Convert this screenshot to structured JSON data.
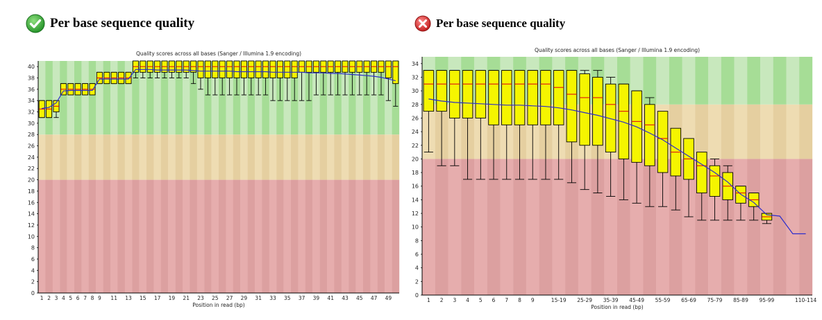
{
  "panels": [
    {
      "id": "left",
      "status": "pass",
      "status_icon": "check-circle-icon",
      "status_color": "#2fa82f",
      "heading": "Per base sequence quality",
      "chart_data": {
        "type": "box",
        "title": "Quality scores across all bases (Sanger / Illumina 1.9 encoding)",
        "xlabel": "Position in read (bp)",
        "ylabel": "",
        "ylim": [
          0,
          41
        ],
        "yticks": [
          0,
          2,
          4,
          6,
          8,
          10,
          12,
          14,
          16,
          18,
          20,
          22,
          24,
          26,
          28,
          30,
          32,
          34,
          36,
          38,
          40
        ],
        "zones": [
          {
            "from": 0,
            "to": 20,
            "colors": [
              "#e6adad",
              "#dca0a0"
            ]
          },
          {
            "from": 20,
            "to": 28,
            "colors": [
              "#eedcb2",
              "#e5cfa0"
            ]
          },
          {
            "from": 28,
            "to": 41,
            "colors": [
              "#c8e8bd",
              "#a6dd96"
            ]
          }
        ],
        "grid": false,
        "categories": [
          "1",
          "2",
          "3",
          "4",
          "5",
          "6",
          "7",
          "8",
          "9",
          "10",
          "11",
          "12",
          "13",
          "14",
          "15",
          "16",
          "17",
          "18",
          "19",
          "20",
          "21",
          "22",
          "23",
          "24",
          "25",
          "26",
          "27",
          "28",
          "29",
          "30",
          "31",
          "32",
          "33",
          "34",
          "35",
          "36",
          "37",
          "38",
          "39",
          "40",
          "41",
          "42",
          "43",
          "44",
          "45",
          "46",
          "47",
          "48",
          "49",
          "50"
        ],
        "xtick_labels": [
          "1",
          "2",
          "3",
          "4",
          "5",
          "6",
          "7",
          "8",
          "9",
          "",
          "11",
          "",
          "13",
          "",
          "15",
          "",
          "17",
          "",
          "19",
          "",
          "21",
          "",
          "23",
          "",
          "25",
          "",
          "27",
          "",
          "29",
          "",
          "31",
          "",
          "33",
          "",
          "35",
          "",
          "37",
          "",
          "39",
          "",
          "41",
          "",
          "43",
          "",
          "45",
          "",
          "47",
          "",
          "49",
          ""
        ],
        "series": [
          {
            "kind": "box",
            "q1": [
              31,
              31,
              32,
              35,
              35,
              35,
              35,
              35,
              37,
              37,
              37,
              37,
              37,
              39,
              39,
              39,
              39,
              39,
              39,
              39,
              39,
              39,
              38,
              38,
              38,
              38,
              38,
              38,
              38,
              38,
              38,
              38,
              38,
              38,
              38,
              38,
              39,
              39,
              39,
              39,
              39,
              39,
              39,
              39,
              39,
              39,
              39,
              39,
              38,
              37
            ],
            "q3": [
              34,
              34,
              34,
              37,
              37,
              37,
              37,
              37,
              39,
              39,
              39,
              39,
              39,
              41,
              41,
              41,
              41,
              41,
              41,
              41,
              41,
              41,
              41,
              41,
              41,
              41,
              41,
              41,
              41,
              41,
              41,
              41,
              41,
              41,
              41,
              41,
              41,
              41,
              41,
              41,
              41,
              41,
              41,
              41,
              41,
              41,
              41,
              41,
              41,
              41
            ],
            "median": [
              32.5,
              32.5,
              33,
              36,
              36,
              36,
              36,
              36,
              38,
              38,
              38,
              38,
              38,
              40,
              40,
              40,
              40,
              40,
              40,
              40,
              40,
              40,
              40,
              40,
              40,
              40,
              40,
              40,
              40,
              40,
              40,
              40,
              40,
              40,
              40,
              40,
              40,
              40,
              40,
              40,
              40,
              40,
              40,
              40,
              40,
              40,
              40,
              40,
              40,
              40
            ],
            "low": [
              31,
              31,
              31,
              35,
              35,
              35,
              35,
              35,
              37,
              37,
              37,
              37,
              37,
              38,
              38,
              38,
              38,
              38,
              38,
              38,
              38,
              37,
              36,
              35,
              35,
              35,
              35,
              35,
              35,
              35,
              35,
              35,
              34,
              34,
              34,
              34,
              34,
              34,
              35,
              35,
              35,
              35,
              35,
              35,
              35,
              35,
              35,
              35,
              34,
              33
            ],
            "high": [
              34,
              34,
              34,
              37,
              37,
              37,
              37,
              37,
              39,
              39,
              39,
              39,
              39,
              41,
              41,
              41,
              41,
              41,
              41,
              41,
              41,
              41,
              41,
              41,
              41,
              41,
              41,
              41,
              41,
              41,
              41,
              41,
              41,
              41,
              41,
              41,
              41,
              41,
              41,
              41,
              41,
              41,
              41,
              41,
              41,
              41,
              41,
              41,
              41,
              41
            ]
          },
          {
            "kind": "mean",
            "values": [
              32.6,
              32.8,
              33.6,
              35.7,
              35.8,
              35.8,
              35.8,
              35.8,
              37.8,
              37.8,
              37.8,
              37.8,
              37.8,
              39.5,
              39.5,
              39.5,
              39.4,
              39.4,
              39.4,
              39.4,
              39.4,
              39.3,
              39.2,
              39.2,
              39.2,
              39.2,
              39.2,
              39.1,
              39.1,
              39.1,
              39.1,
              39.1,
              39.0,
              39.0,
              39.0,
              39.0,
              39.0,
              38.9,
              38.9,
              38.9,
              38.8,
              38.8,
              38.7,
              38.6,
              38.5,
              38.4,
              38.3,
              38.1,
              37.8,
              37.5
            ]
          }
        ]
      }
    },
    {
      "id": "right",
      "status": "fail",
      "status_icon": "error-x-circle-icon",
      "status_color": "#d43030",
      "heading": "Per base sequence quality",
      "chart_data": {
        "type": "box",
        "title": "Quality scores across all bases (Sanger / Illumina 1.9 encoding)",
        "xlabel": "Position in read (bp)",
        "ylabel": "",
        "ylim": [
          0,
          35
        ],
        "yticks": [
          0,
          2,
          4,
          6,
          8,
          10,
          12,
          14,
          16,
          18,
          20,
          22,
          24,
          26,
          28,
          30,
          32,
          34
        ],
        "zones": [
          {
            "from": 0,
            "to": 20,
            "colors": [
              "#e6adad",
              "#dca0a0"
            ]
          },
          {
            "from": 20,
            "to": 28,
            "colors": [
              "#eedcb2",
              "#e5cfa0"
            ]
          },
          {
            "from": 28,
            "to": 35,
            "colors": [
              "#c8e8bd",
              "#a6dd96"
            ]
          }
        ],
        "grid": false,
        "categories": [
          "1",
          "2",
          "3",
          "4",
          "5",
          "6",
          "7",
          "8",
          "9",
          "10-14",
          "15-19",
          "20-24",
          "25-29",
          "30-34",
          "35-39",
          "40-44",
          "45-49",
          "50-54",
          "55-59",
          "60-64",
          "65-69",
          "70-74",
          "75-79",
          "80-84",
          "85-89",
          "90-94",
          "95-99",
          "100-104",
          "105-109",
          "110-114"
        ],
        "xtick_labels": [
          "1",
          "2",
          "3",
          "4",
          "5",
          "6",
          "7",
          "8",
          "9",
          "",
          "15-19",
          "",
          "25-29",
          "",
          "35-39",
          "",
          "45-49",
          "",
          "55-59",
          "",
          "65-69",
          "",
          "75-79",
          "",
          "85-89",
          "",
          "95-99",
          "",
          "",
          "110-114"
        ],
        "series": [
          {
            "kind": "box",
            "q1": [
              27,
              27,
              26,
              26,
              26,
              25,
              25,
              25,
              25,
              25,
              25,
              22.5,
              22,
              22,
              21,
              20,
              19.5,
              19,
              18,
              17.5,
              17,
              15,
              14.5,
              14,
              13.5,
              13,
              11,
              null,
              null,
              null
            ],
            "q3": [
              33,
              33,
              33,
              33,
              33,
              33,
              33,
              33,
              33,
              33,
              33,
              33,
              32.5,
              32,
              31,
              31,
              30,
              28,
              27,
              24.5,
              23,
              21,
              19,
              18,
              16,
              15,
              12,
              null,
              null,
              null
            ],
            "median": [
              31,
              31,
              31,
              31,
              31,
              31,
              31,
              31,
              31,
              31,
              30.5,
              29.5,
              29,
              29,
              28,
              27,
              25.5,
              25,
              23,
              21,
              20,
              19,
              17.5,
              16,
              15,
              14,
              11.5,
              null,
              null,
              null
            ],
            "low": [
              21,
              19,
              19,
              17,
              17,
              17,
              17,
              17,
              17,
              17,
              17,
              16.5,
              15.5,
              15,
              14.5,
              14,
              13.5,
              13,
              13,
              12.5,
              11.5,
              11,
              11,
              11,
              11,
              11,
              10.5,
              null,
              null,
              null
            ],
            "high": [
              33,
              33,
              33,
              33,
              33,
              33,
              33,
              33,
              33,
              33,
              33,
              33,
              33,
              33,
              32,
              31,
              30,
              29,
              26,
              24,
              21,
              20,
              20,
              19,
              16,
              15,
              12,
              null,
              null,
              null
            ]
          },
          {
            "kind": "mean",
            "values": [
              28.8,
              28.5,
              28.3,
              28.2,
              28.1,
              28.0,
              27.9,
              27.9,
              27.8,
              27.7,
              27.5,
              27.2,
              26.8,
              26.4,
              25.9,
              25.4,
              24.7,
              23.8,
              22.8,
              21.6,
              20.4,
              19.2,
              18.0,
              16.6,
              14.8,
              13.6,
              11.8,
              11.6,
              9.0,
              9.0
            ]
          }
        ]
      }
    }
  ]
}
